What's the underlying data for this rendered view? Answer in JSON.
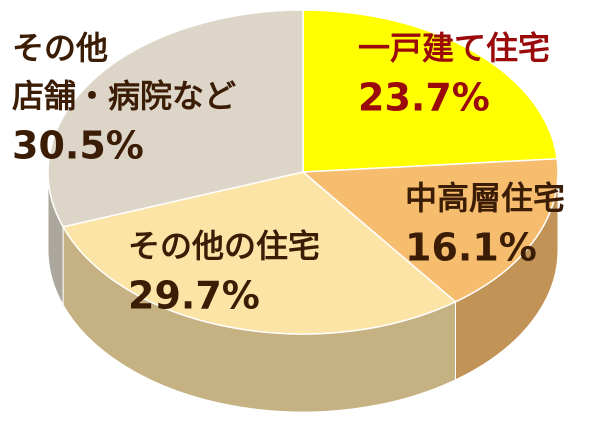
{
  "chart_data": {
    "type": "pie3d",
    "categories": [
      "一戸建て住宅",
      "中高層住宅",
      "その他の住宅",
      "その他\n店舗・病院など"
    ],
    "values": [
      23.7,
      16.1,
      29.7,
      30.5
    ],
    "value_labels": [
      "23.7%",
      "16.1%",
      "29.7%",
      "30.5%"
    ],
    "colors": [
      "#ffff00",
      "#f7bd6e",
      "#fce3a6",
      "#ddd6c8"
    ],
    "label_colors": [
      "#9a0a0a",
      "#3b1c05",
      "#3b1c05",
      "#3b1c05"
    ]
  }
}
